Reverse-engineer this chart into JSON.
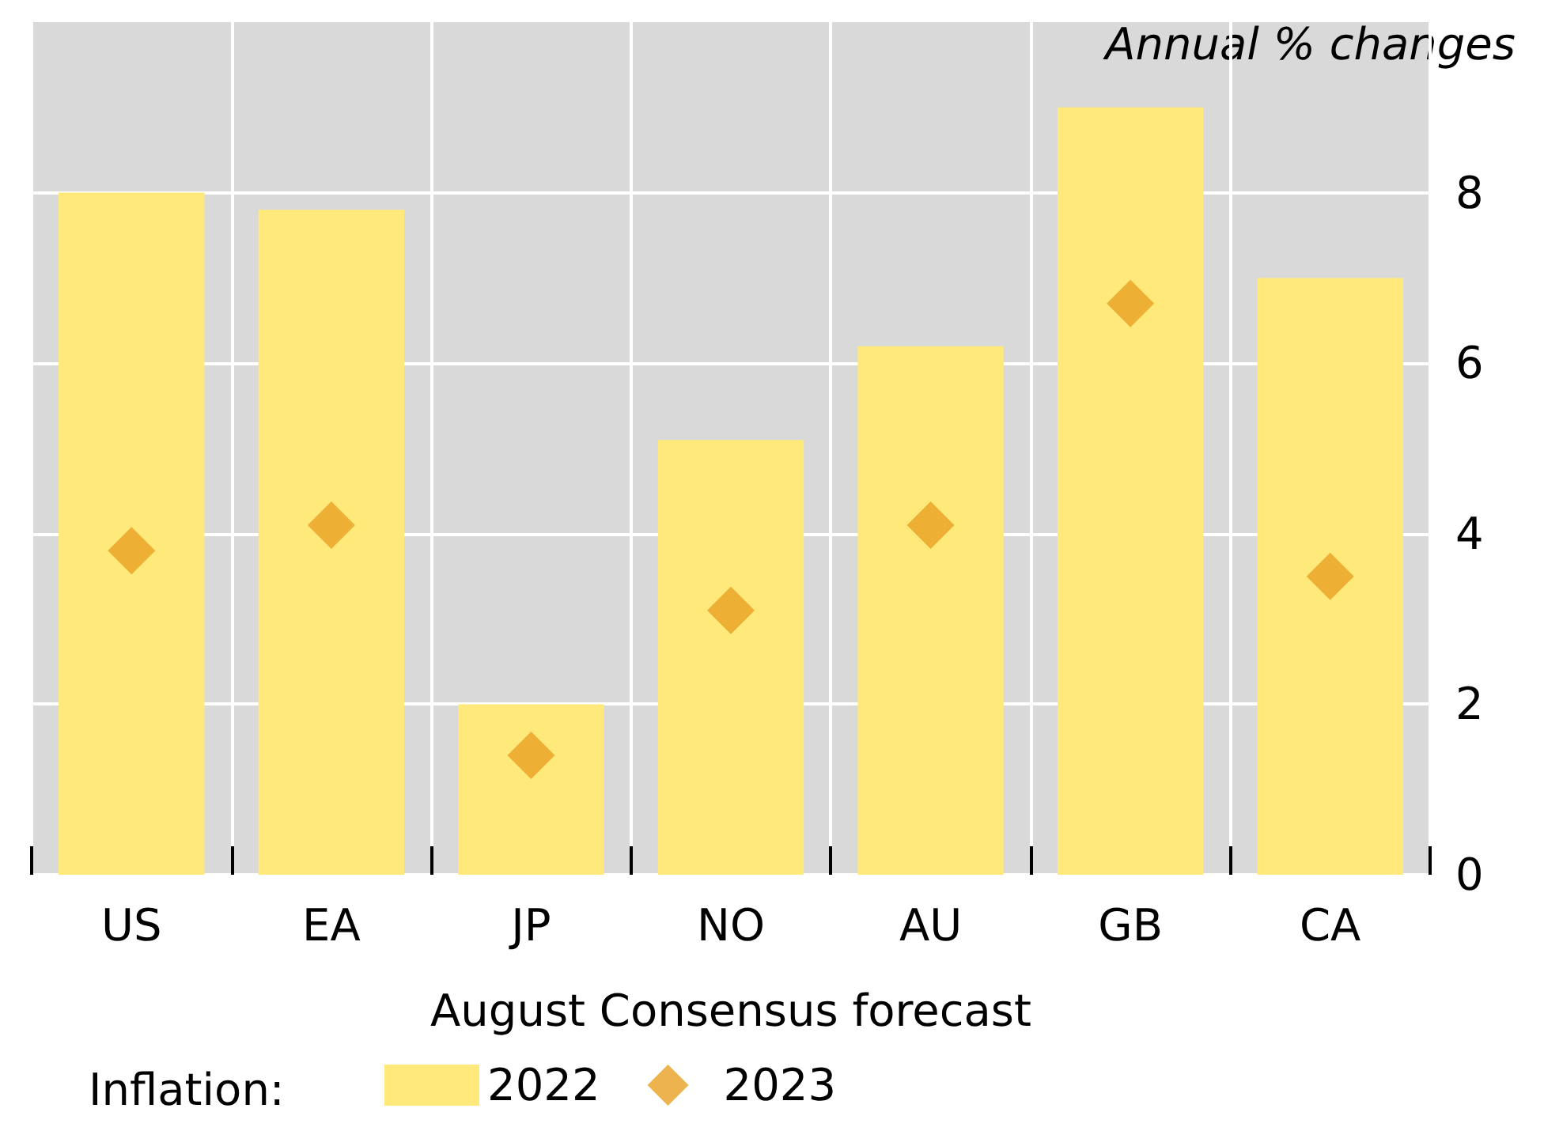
{
  "chart_data": {
    "type": "bar",
    "ylabel": "Annual % changes",
    "xlabel": "August Consensus forecast",
    "legend_title": "Inflation:",
    "categories": [
      "US",
      "EA",
      "JP",
      "NO",
      "AU",
      "GB",
      "CA"
    ],
    "series": [
      {
        "name": "2022",
        "color": "#ffe97a",
        "values": [
          8.0,
          7.8,
          2.0,
          5.1,
          6.2,
          9.0,
          7.0
        ]
      },
      {
        "name": "2023",
        "type": "scatter",
        "color": "#e8a023",
        "marker": "diamond",
        "values": [
          3.8,
          4.1,
          1.4,
          3.1,
          4.1,
          6.7,
          3.5
        ]
      }
    ],
    "ylim": [
      0,
      10
    ],
    "yticks": [
      0,
      2,
      4,
      6,
      8
    ],
    "grid": true,
    "legend": "bottom left"
  }
}
